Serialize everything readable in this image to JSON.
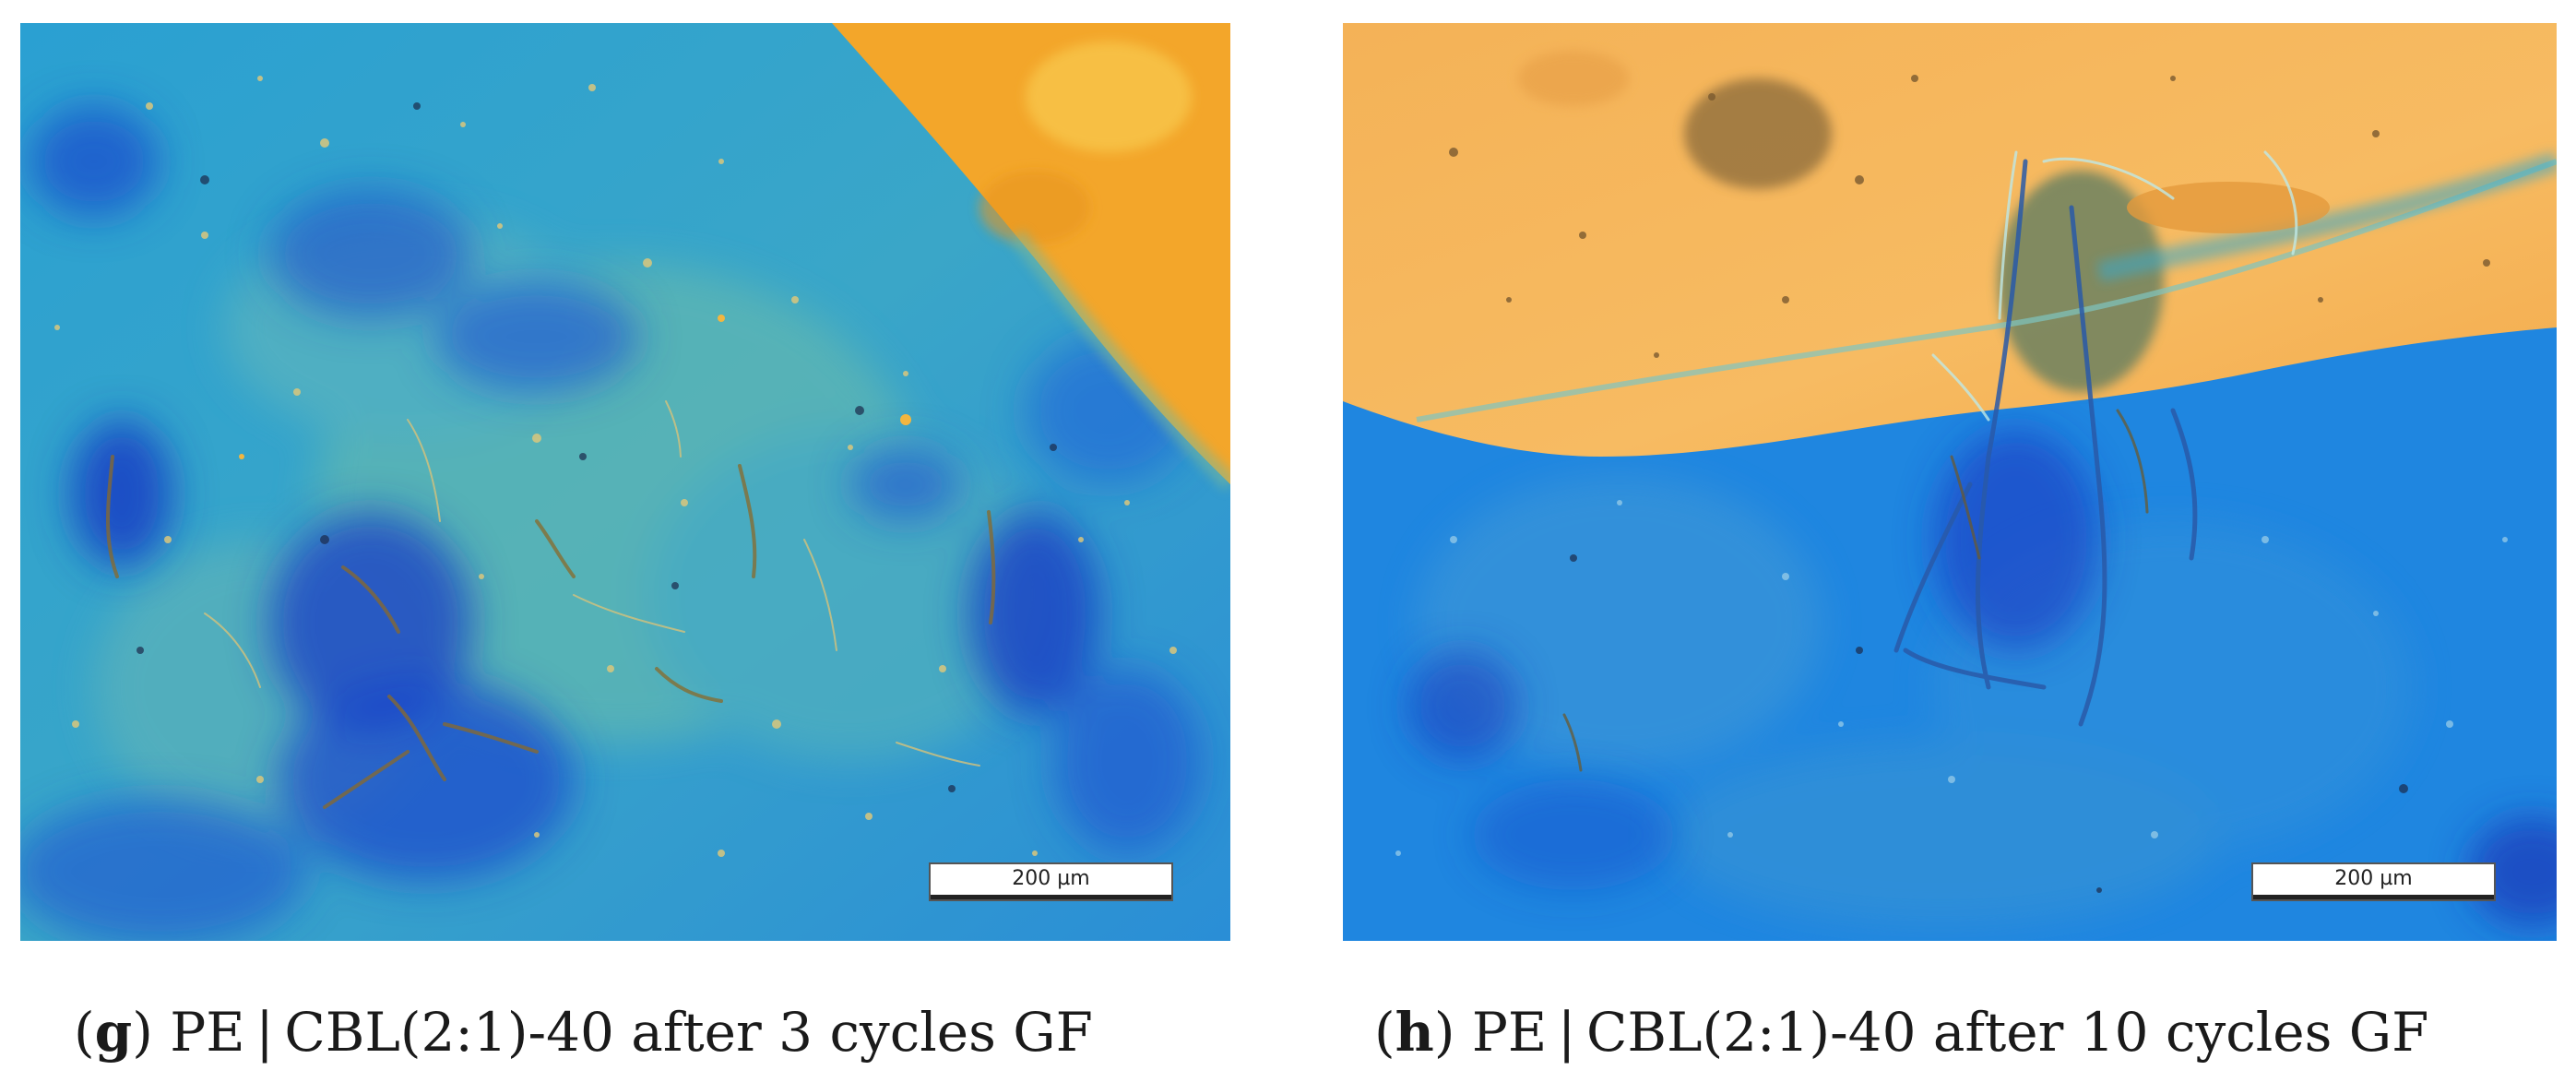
{
  "panels": [
    {
      "id": "g",
      "letter": "g",
      "caption": "PE | CBL(2:1)-40 after 3 cycles GF",
      "scale_bar": "200 µm",
      "colors": {
        "matrix": "#2a9bd8",
        "dark_blue": "#1a44c8",
        "gold": "#f3a62a"
      }
    },
    {
      "id": "h",
      "letter": "h",
      "caption": "PE | CBL(2:1)-40 after 10 cycles GF",
      "scale_bar": "200 µm",
      "colors": {
        "matrix": "#1f86e0",
        "dark_blue": "#1a44c8",
        "gold": "#f6b655"
      }
    }
  ]
}
